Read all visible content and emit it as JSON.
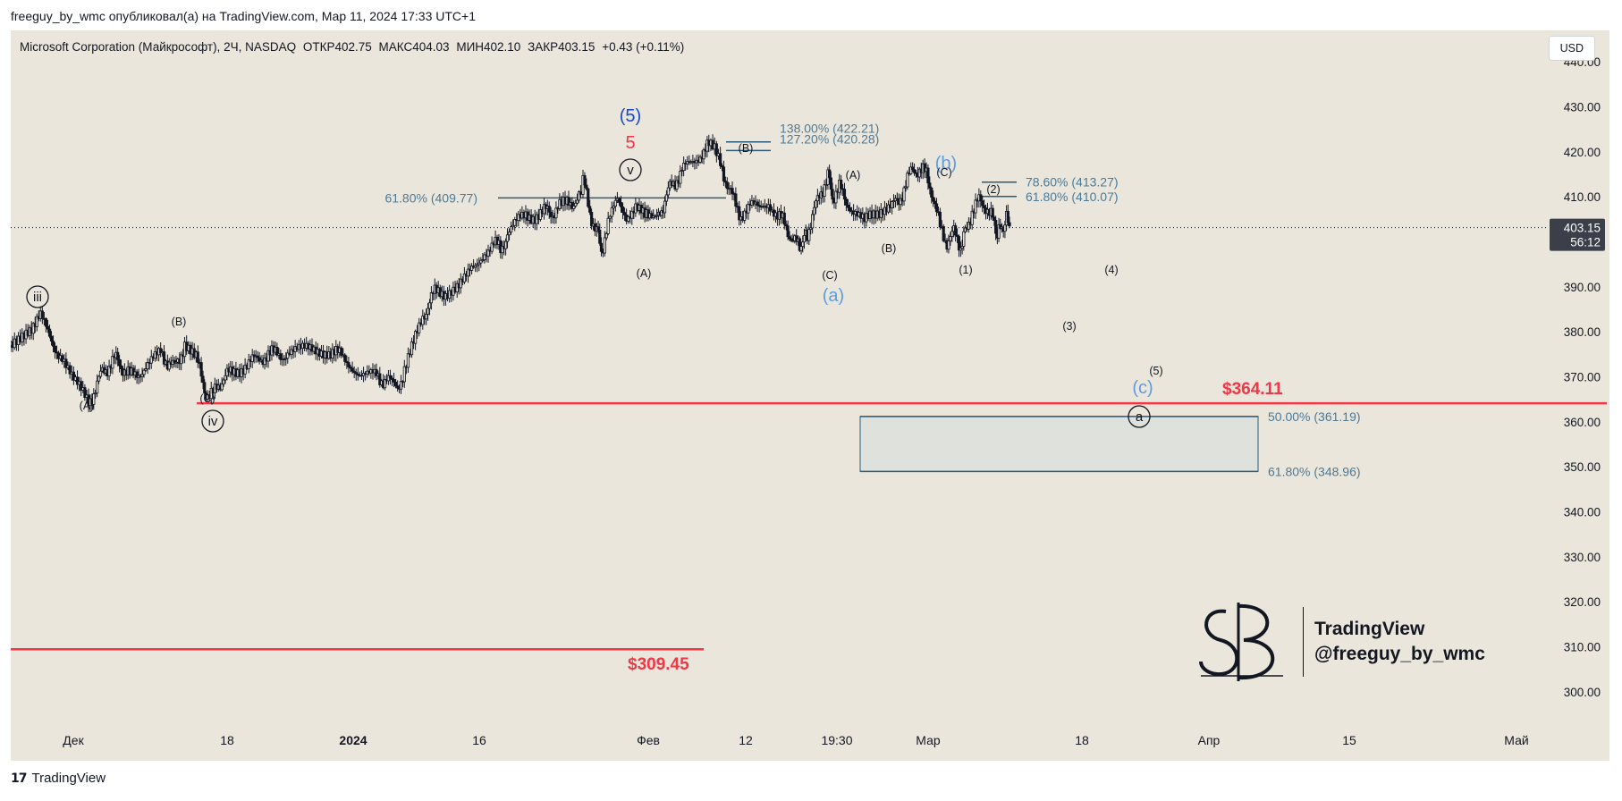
{
  "header": {
    "published_line": "freeguy_by_wmc опубликовал(а) на TradingView.com, Мар 11, 2024 17:33 UTC+1"
  },
  "legend": {
    "symbol": "Microsoft Corporation (Майкрософт), 2Ч, NASDAQ",
    "open": "ОТКР402.75",
    "high": "МАКС404.03",
    "low": "МИН402.10",
    "close": "ЗАКР403.15",
    "change": "+0.43 (+0.11%)"
  },
  "currency_label": "USD",
  "footer": {
    "brand": "TradingView"
  },
  "watermark": {
    "line1": "TradingView",
    "line2": "@freeguy_by_wmc"
  },
  "colors": {
    "background": "#ebe6dc",
    "candle": "#131722",
    "fib_line": "#2a5a7a",
    "fib_text": "#4b7a98",
    "target_red": "#f23645",
    "wave_blue": "#1848cc",
    "wave_lightblue": "#5b9ee0",
    "zone_fill": "#dfe2dc"
  },
  "chart_data": {
    "type": "candlestick",
    "symbol": "MSFT",
    "timeframe": "2Ч",
    "price_axis": {
      "ylim": [
        294,
        445
      ],
      "ticks": [
        300,
        310,
        320,
        330,
        340,
        350,
        360,
        370,
        380,
        390,
        400,
        410,
        420,
        430,
        440
      ],
      "tick_labels": [
        "300.00",
        "310.00",
        "320.00",
        "330.00",
        "340.00",
        "350.00",
        "360.00",
        "370.00",
        "380.00",
        "390.00",
        "400.00",
        "410.00",
        "420.00",
        "430.00",
        "440.00"
      ]
    },
    "time_axis": {
      "labels": [
        {
          "text": "Дек",
          "bold": false
        },
        {
          "text": "18",
          "bold": false
        },
        {
          "text": "2024",
          "bold": true
        },
        {
          "text": "16",
          "bold": false
        },
        {
          "text": "Фев",
          "bold": false
        },
        {
          "text": "12",
          "bold": false
        },
        {
          "text": "19:30",
          "bold": false
        },
        {
          "text": "Мар",
          "bold": false
        },
        {
          "text": "18",
          "bold": false
        },
        {
          "text": "Апр",
          "bold": false
        },
        {
          "text": "15",
          "bold": false
        },
        {
          "text": "Май",
          "bold": false
        }
      ]
    },
    "last_price": {
      "value": 403.15,
      "label": "403.15",
      "countdown": "56:12"
    },
    "price_path": [
      [
        0,
        377
      ],
      [
        15,
        381
      ],
      [
        26,
        383
      ],
      [
        34,
        379
      ],
      [
        45,
        374
      ],
      [
        55,
        369
      ],
      [
        68,
        364
      ],
      [
        80,
        371
      ],
      [
        92,
        374
      ],
      [
        104,
        370
      ],
      [
        118,
        372
      ],
      [
        131,
        375
      ],
      [
        143,
        372
      ],
      [
        152,
        377
      ],
      [
        162,
        374
      ],
      [
        168,
        369
      ],
      [
        172,
        364
      ],
      [
        180,
        368
      ],
      [
        192,
        371
      ],
      [
        208,
        373
      ],
      [
        225,
        375
      ],
      [
        242,
        375
      ],
      [
        260,
        376
      ],
      [
        278,
        376
      ],
      [
        292,
        374
      ],
      [
        305,
        371
      ],
      [
        318,
        370
      ],
      [
        330,
        369
      ],
      [
        338,
        367
      ],
      [
        344,
        372
      ],
      [
        352,
        377
      ],
      [
        360,
        383
      ],
      [
        366,
        387
      ],
      [
        372,
        389
      ],
      [
        380,
        389
      ],
      [
        390,
        391
      ],
      [
        398,
        392
      ],
      [
        406,
        394
      ],
      [
        414,
        398
      ],
      [
        422,
        400
      ],
      [
        428,
        398
      ],
      [
        434,
        402
      ],
      [
        442,
        404
      ],
      [
        450,
        406
      ],
      [
        458,
        406
      ],
      [
        466,
        407
      ],
      [
        472,
        406
      ],
      [
        478,
        408
      ],
      [
        486,
        408
      ],
      [
        492,
        409
      ],
      [
        498,
        410
      ],
      [
        500,
        414
      ],
      [
        506,
        406
      ],
      [
        512,
        403
      ],
      [
        516,
        398
      ],
      [
        522,
        404
      ],
      [
        530,
        409
      ],
      [
        538,
        406
      ],
      [
        546,
        408
      ],
      [
        554,
        405
      ],
      [
        560,
        407
      ],
      [
        566,
        405
      ],
      [
        570,
        408
      ],
      [
        576,
        412
      ],
      [
        582,
        414
      ],
      [
        588,
        416
      ],
      [
        596,
        418
      ],
      [
        604,
        420
      ],
      [
        610,
        421
      ],
      [
        615,
        420
      ],
      [
        620,
        417
      ],
      [
        626,
        413
      ],
      [
        632,
        409
      ],
      [
        638,
        406
      ],
      [
        646,
        408
      ],
      [
        654,
        407
      ],
      [
        662,
        409
      ],
      [
        670,
        406
      ],
      [
        676,
        404
      ],
      [
        682,
        401
      ],
      [
        688,
        399
      ],
      [
        692,
        400
      ],
      [
        696,
        402
      ],
      [
        702,
        407
      ],
      [
        708,
        411
      ],
      [
        714,
        415
      ],
      [
        718,
        410
      ],
      [
        724,
        412
      ],
      [
        730,
        409
      ],
      [
        738,
        407
      ],
      [
        746,
        404
      ],
      [
        754,
        406
      ],
      [
        762,
        408
      ],
      [
        770,
        408
      ],
      [
        776,
        409
      ],
      [
        782,
        413
      ],
      [
        788,
        416
      ],
      [
        794,
        416
      ],
      [
        800,
        415
      ],
      [
        806,
        410
      ],
      [
        812,
        403
      ],
      [
        818,
        400
      ],
      [
        824,
        402
      ],
      [
        830,
        399
      ],
      [
        834,
        402
      ],
      [
        840,
        407
      ],
      [
        846,
        409
      ],
      [
        852,
        408
      ],
      [
        858,
        405
      ],
      [
        862,
        402
      ],
      [
        866,
        403
      ],
      [
        870,
        405
      ],
      [
        874,
        403
      ]
    ],
    "horizontal_levels": [
      {
        "name": "target-364",
        "value": 364.11,
        "label": "$364.11",
        "color": "red"
      },
      {
        "name": "target-309",
        "value": 309.45,
        "label": "$309.45",
        "color": "red"
      }
    ],
    "fib_levels": [
      {
        "value": 409.77,
        "label": "61.80% (409.77)"
      },
      {
        "value": 422.21,
        "label": "138.00% (422.21)"
      },
      {
        "value": 420.28,
        "label": "127.20% (420.28)"
      },
      {
        "value": 413.27,
        "label": "78.60% (413.27)"
      },
      {
        "value": 410.07,
        "label": "61.80% (410.07)"
      },
      {
        "value": 361.19,
        "label": "50.00% (361.19)"
      },
      {
        "value": 348.96,
        "label": "61.80% (348.96)"
      }
    ],
    "target_zone": {
      "top": 361.19,
      "bottom": 348.96
    },
    "wave_labels": [
      {
        "text": "iii",
        "style": "circled",
        "color": "dark"
      },
      {
        "text": "(A)",
        "style": "plain",
        "color": "dark"
      },
      {
        "text": "(B)",
        "style": "plain",
        "color": "dark"
      },
      {
        "text": "(C)",
        "style": "plain",
        "color": "dark"
      },
      {
        "text": "iv",
        "style": "circled",
        "color": "dark"
      },
      {
        "text": "(5)",
        "style": "large",
        "color": "blue"
      },
      {
        "text": "5",
        "style": "large",
        "color": "red"
      },
      {
        "text": "v",
        "style": "circled",
        "color": "dark"
      },
      {
        "text": "(A)",
        "style": "plain",
        "color": "dark"
      },
      {
        "text": "(B)",
        "style": "plain",
        "color": "dark"
      },
      {
        "text": "(A)",
        "style": "plain",
        "color": "dark"
      },
      {
        "text": "(B)",
        "style": "plain",
        "color": "dark"
      },
      {
        "text": "(C)",
        "style": "plain",
        "color": "dark"
      },
      {
        "text": "(a)",
        "style": "large",
        "color": "lightblue"
      },
      {
        "text": "(b)",
        "style": "large",
        "color": "lightblue"
      },
      {
        "text": "(C)",
        "style": "plain",
        "color": "dark"
      },
      {
        "text": "(1)",
        "style": "plain",
        "color": "dark"
      },
      {
        "text": "(2)",
        "style": "plain",
        "color": "dark"
      },
      {
        "text": "(3)",
        "style": "plain",
        "color": "dark"
      },
      {
        "text": "(4)",
        "style": "plain",
        "color": "dark"
      },
      {
        "text": "(5)",
        "style": "plain",
        "color": "dark"
      },
      {
        "text": "(c)",
        "style": "large",
        "color": "lightblue"
      },
      {
        "text": "a",
        "style": "circled",
        "color": "dark"
      }
    ]
  }
}
